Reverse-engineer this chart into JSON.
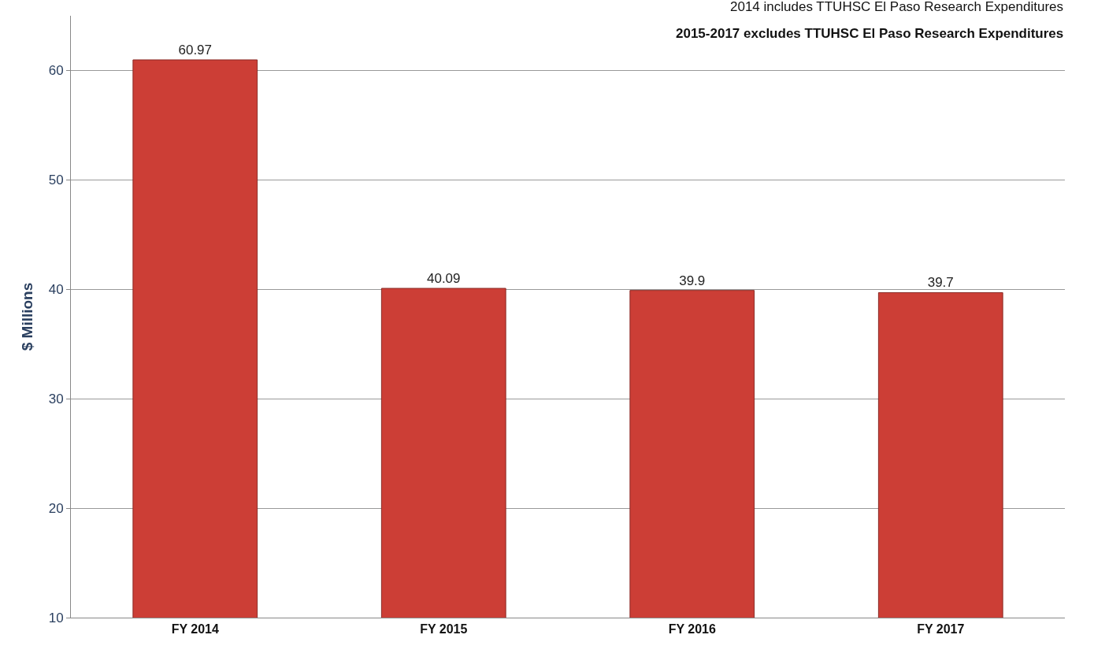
{
  "chart_data": {
    "type": "bar",
    "ylabel": "$ Millions",
    "categories": [
      "FY 2014",
      "FY 2015",
      "FY 2016",
      "FY 2017"
    ],
    "values": [
      60.97,
      40.09,
      39.9,
      39.7
    ],
    "color": "#cc3e36",
    "ylim": [
      10,
      65
    ],
    "yticks": [
      10,
      20,
      30,
      40,
      50,
      60
    ],
    "grid": "y",
    "data_labels": true,
    "annotations": [
      "2014 includes TTUHSC El Paso Research Expenditures",
      "2015-2017 excludes TTUHSC El Paso Research Expenditures"
    ]
  }
}
